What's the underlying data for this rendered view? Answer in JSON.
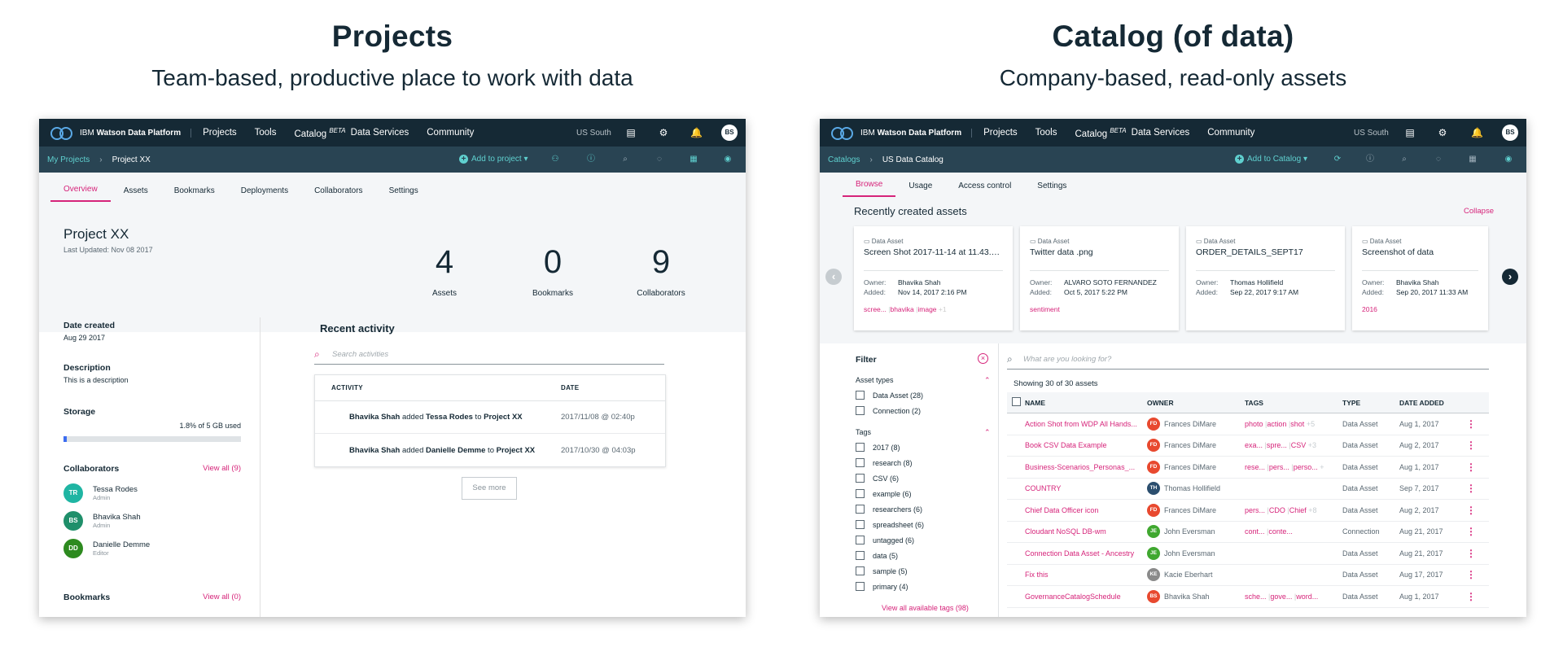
{
  "left_heading": {
    "title": "Projects",
    "subtitle": "Team-based, productive place to work with data"
  },
  "right_heading": {
    "title": "Catalog (of data)",
    "subtitle": "Company-based, read-only assets"
  },
  "topbar": {
    "brand_prefix": "IBM",
    "brand_name": "Watson Data Platform",
    "nav": [
      "Projects",
      "Tools",
      "Catalog",
      "Data Services",
      "Community"
    ],
    "catalog_sup": "BETA",
    "region": "US South",
    "avatar": "BS"
  },
  "left": {
    "breadcrumb": [
      "My Projects",
      "Project XX"
    ],
    "add_button": "Add to project",
    "tabs": [
      "Overview",
      "Assets",
      "Bookmarks",
      "Deployments",
      "Collaborators",
      "Settings"
    ],
    "project_title": "Project XX",
    "last_updated": "Last Updated: Nov 08 2017",
    "stats": [
      {
        "n": "4",
        "l": "Assets"
      },
      {
        "n": "0",
        "l": "Bookmarks"
      },
      {
        "n": "9",
        "l": "Collaborators"
      }
    ],
    "date_created_label": "Date created",
    "date_created": "Aug 29 2017",
    "description_label": "Description",
    "description": "This is a description",
    "storage_label": "Storage",
    "storage_text": "1.8% of 5 GB used",
    "storage_pct": 1.8,
    "collaborators_label": "Collaborators",
    "collab_viewall": "View all (9)",
    "collaborators": [
      {
        "initials": "TR",
        "name": "Tessa Rodes",
        "role": "Admin",
        "color": "#1fb5a3"
      },
      {
        "initials": "BS",
        "name": "Bhavika Shah",
        "role": "Admin",
        "color": "#1f8f6a"
      },
      {
        "initials": "DD",
        "name": "Danielle Demme",
        "role": "Editor",
        "color": "#2d8a1f"
      }
    ],
    "bookmarks_label": "Bookmarks",
    "bookmarks_viewall": "View all (0)",
    "recent_activity": "Recent activity",
    "search_placeholder": "Search activities",
    "activity_headers": [
      "ACTIVITY",
      "DATE"
    ],
    "activities": [
      {
        "who": "Bhavika Shah",
        "verb": " added ",
        "target": "Tessa Rodes",
        "prep": " to ",
        "project": "Project XX",
        "date": "2017/11/08 @ 02:40p"
      },
      {
        "who": "Bhavika Shah",
        "verb": " added ",
        "target": "Danielle Demme",
        "prep": " to ",
        "project": "Project XX",
        "date": "2017/10/30 @ 04:03p"
      }
    ],
    "see_more": "See more"
  },
  "right": {
    "breadcrumb": [
      "Catalogs",
      "US Data Catalog"
    ],
    "add_button": "Add to Catalog",
    "tabs": [
      "Browse",
      "Usage",
      "Access control",
      "Settings"
    ],
    "recent_title": "Recently created assets",
    "collapse": "Collapse",
    "owner_label": "Owner:",
    "added_label": "Added:",
    "cards": [
      {
        "type": "Data Asset",
        "name": "Screen Shot 2017-11-14 at 11.43.5...",
        "owner": "Bhavika Shah",
        "added": "Nov 14, 2017 2:16 PM",
        "tags": [
          "scree...",
          "bhavika",
          "image"
        ],
        "more": "+1"
      },
      {
        "type": "Data Asset",
        "name": "Twitter data .png",
        "owner": "ALVARO SOTO FERNANDEZ",
        "added": "Oct 5, 2017 5:22 PM",
        "tags": [
          "sentiment"
        ],
        "more": ""
      },
      {
        "type": "Data Asset",
        "name": "ORDER_DETAILS_SEPT17",
        "owner": "Thomas Hollifield",
        "added": "Sep 22, 2017 9:17 AM",
        "tags": [],
        "more": ""
      },
      {
        "type": "Data Asset",
        "name": "Screenshot of data",
        "owner": "Bhavika Shah",
        "added": "Sep 20, 2017 11:33 AM",
        "tags": [
          "2016"
        ],
        "more": ""
      }
    ],
    "filter_title": "Filter",
    "asset_types_label": "Asset types",
    "asset_types": [
      "Data Asset (28)",
      "Connection (2)"
    ],
    "tags_label": "Tags",
    "tags": [
      "2017 (8)",
      "research (8)",
      "CSV (6)",
      "example (6)",
      "researchers (6)",
      "spreadsheet (6)",
      "untagged (6)",
      "data (5)",
      "sample (5)",
      "primary (4)"
    ],
    "view_all_tags": "View all available tags (98)",
    "search_placeholder": "What are you looking for?",
    "showing": "Showing 30 of 30 assets",
    "headers": [
      "NAME",
      "OWNER",
      "TAGS",
      "TYPE",
      "DATE ADDED"
    ],
    "rows": [
      {
        "name": "Action Shot from WDP All Hands...",
        "oi": "FD",
        "owner": "Frances DiMare",
        "oc": "#e8492f",
        "tags": [
          "photo",
          "action",
          "shot"
        ],
        "more": "+5",
        "type": "Data Asset",
        "date": "Aug 1, 2017"
      },
      {
        "name": "Book CSV Data Example",
        "oi": "FD",
        "owner": "Frances DiMare",
        "oc": "#e8492f",
        "tags": [
          "exa...",
          "spre...",
          "CSV"
        ],
        "more": "+3",
        "type": "Data Asset",
        "date": "Aug 2, 2017"
      },
      {
        "name": "Business-Scenarios_Personas_...",
        "oi": "FD",
        "owner": "Frances DiMare",
        "oc": "#e8492f",
        "tags": [
          "rese...",
          "pers...",
          "perso..."
        ],
        "more": "+",
        "type": "Data Asset",
        "date": "Aug 1, 2017"
      },
      {
        "name": "COUNTRY",
        "oi": "TH",
        "owner": "Thomas Hollifield",
        "oc": "#2b4e6e",
        "tags": [],
        "more": "",
        "type": "Data Asset",
        "date": "Sep 7, 2017"
      },
      {
        "name": "Chief Data Officer icon",
        "oi": "FD",
        "owner": "Frances DiMare",
        "oc": "#e8492f",
        "tags": [
          "pers...",
          "CDO",
          "Chief"
        ],
        "more": "+8",
        "type": "Data Asset",
        "date": "Aug 2, 2017"
      },
      {
        "name": "Cloudant NoSQL DB-wm",
        "oi": "JE",
        "owner": "John Eversman",
        "oc": "#40a830",
        "tags": [
          "cont...",
          "conte..."
        ],
        "more": "",
        "type": "Connection",
        "date": "Aug 21, 2017"
      },
      {
        "name": "Connection Data Asset - Ancestry",
        "oi": "JE",
        "owner": "John Eversman",
        "oc": "#40a830",
        "tags": [],
        "more": "",
        "type": "Data Asset",
        "date": "Aug 21, 2017"
      },
      {
        "name": "Fix this",
        "oi": "KE",
        "owner": "Kacie Eberhart",
        "oc": "#8a8a8a",
        "tags": [],
        "more": "",
        "type": "Data Asset",
        "date": "Aug 17, 2017"
      },
      {
        "name": "GovernanceCatalogSchedule",
        "oi": "BS",
        "owner": "Bhavika Shah",
        "oc": "#e8492f",
        "tags": [
          "sche...",
          "gove...",
          "word..."
        ],
        "more": "",
        "type": "Data Asset",
        "date": "Aug 1, 2017"
      }
    ]
  },
  "colors": {
    "navy": "#152935",
    "subbar": "#294453",
    "accent": "#d6247a",
    "teal": "#5fd0cf"
  }
}
